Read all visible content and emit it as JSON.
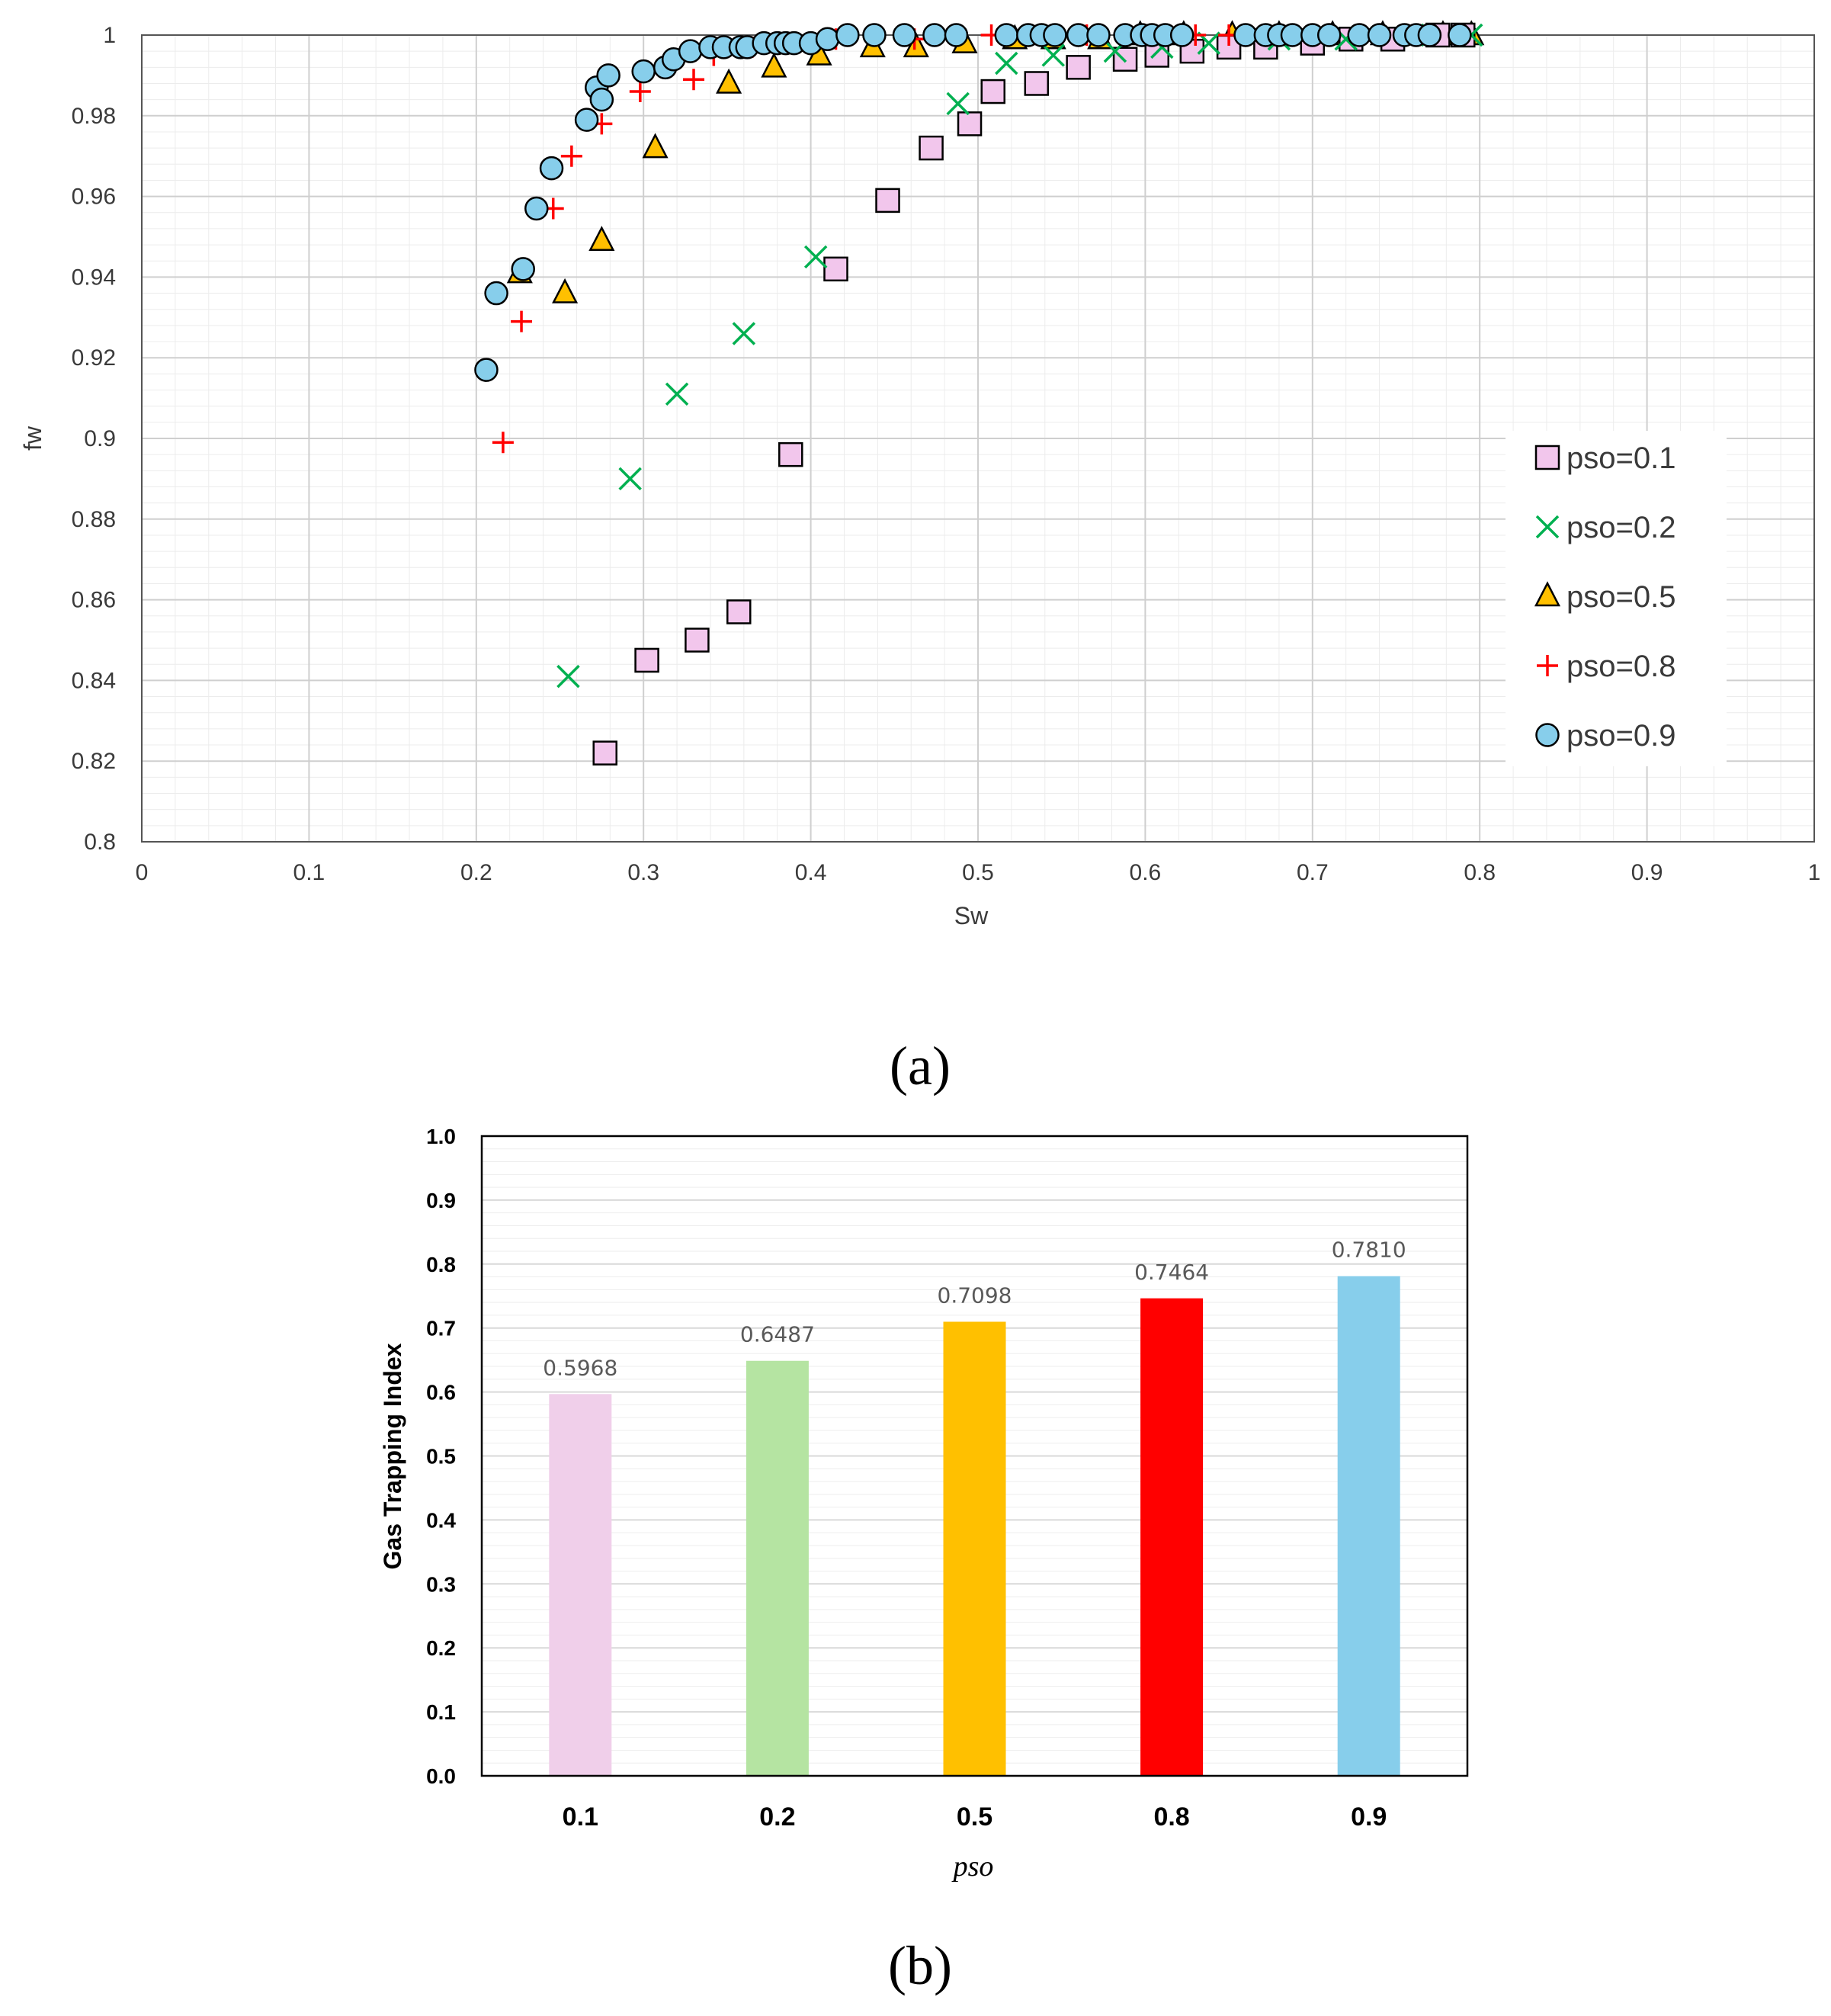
{
  "chart_data": [
    {
      "type": "scatter",
      "panel_label": "(a)",
      "xlabel": "Sw",
      "ylabel": "fw",
      "xlim": [
        0,
        1
      ],
      "ylim": [
        0.8,
        1
      ],
      "x_ticks": [
        "0",
        "0.1",
        "0.2",
        "0.3",
        "0.4",
        "0.5",
        "0.6",
        "0.7",
        "0.8",
        "0.9",
        "1"
      ],
      "y_ticks": [
        "0.8",
        "0.82",
        "0.84",
        "0.86",
        "0.88",
        "0.9",
        "0.92",
        "0.94",
        "0.96",
        "0.98",
        "1"
      ],
      "grid": true,
      "legend_position": "right",
      "series": [
        {
          "name": "pso=0.1",
          "marker": "square",
          "color": "#F2C6EC",
          "x": [
            0.277,
            0.302,
            0.332,
            0.357,
            0.388,
            0.415,
            0.446,
            0.472,
            0.495,
            0.509,
            0.535,
            0.56,
            0.588,
            0.607,
            0.628,
            0.65,
            0.672,
            0.7,
            0.723,
            0.748,
            0.775,
            0.79
          ],
          "y": [
            0.822,
            0.845,
            0.85,
            0.857,
            0.896,
            0.942,
            0.959,
            0.972,
            0.978,
            0.986,
            0.988,
            0.992,
            0.994,
            0.995,
            0.996,
            0.997,
            0.997,
            0.998,
            0.999,
            0.999,
            1.0,
            1.0
          ]
        },
        {
          "name": "pso=0.2",
          "marker": "x",
          "color": "#00B050",
          "x": [
            0.255,
            0.292,
            0.32,
            0.36,
            0.403,
            0.488,
            0.517,
            0.545,
            0.582,
            0.61,
            0.638,
            0.68,
            0.72,
            0.76,
            0.795
          ],
          "y": [
            0.841,
            0.89,
            0.911,
            0.926,
            0.945,
            0.983,
            0.993,
            0.995,
            0.996,
            0.997,
            0.998,
            0.999,
            0.999,
            1.0,
            1.0
          ]
        },
        {
          "name": "pso=0.5",
          "marker": "triangle",
          "color": "#FFC000",
          "x": [
            0.226,
            0.253,
            0.275,
            0.307,
            0.351,
            0.378,
            0.405,
            0.437,
            0.463,
            0.492,
            0.522,
            0.545,
            0.573,
            0.597,
            0.623,
            0.652,
            0.68,
            0.712,
            0.742,
            0.778,
            0.795
          ],
          "y": [
            0.941,
            0.936,
            0.949,
            0.972,
            0.988,
            0.992,
            0.995,
            0.997,
            0.997,
            0.998,
            0.999,
            0.999,
            0.999,
            1.0,
            1.0,
            1.0,
            1.0,
            1.0,
            1.0,
            1.0,
            1.0
          ]
        },
        {
          "name": "pso=0.8",
          "marker": "plus",
          "color": "#FF0000",
          "x": [
            0.216,
            0.227,
            0.246,
            0.257,
            0.275,
            0.298,
            0.33,
            0.342,
            0.365,
            0.388,
            0.415,
            0.462,
            0.508,
            0.565,
            0.63,
            0.65
          ],
          "y": [
            0.899,
            0.929,
            0.957,
            0.97,
            0.978,
            0.986,
            0.989,
            0.995,
            0.997,
            0.998,
            0.999,
            0.999,
            1.0,
            1.0,
            1.0,
            1.0
          ]
        },
        {
          "name": "pso=0.9",
          "marker": "circle",
          "color": "#87CEEB",
          "x": [
            0.206,
            0.212,
            0.228,
            0.236,
            0.245,
            0.266,
            0.272,
            0.275,
            0.279,
            0.3,
            0.313,
            0.318,
            0.328,
            0.34,
            0.348,
            0.358,
            0.362,
            0.372,
            0.38,
            0.385,
            0.39,
            0.4,
            0.41,
            0.422,
            0.438,
            0.456,
            0.474,
            0.487,
            0.517,
            0.53,
            0.538,
            0.546,
            0.56,
            0.572,
            0.588,
            0.598,
            0.604,
            0.612,
            0.622,
            0.66,
            0.672,
            0.68,
            0.688,
            0.7,
            0.71,
            0.728,
            0.74,
            0.755,
            0.762,
            0.77,
            0.788
          ],
          "y": [
            0.917,
            0.936,
            0.942,
            0.957,
            0.967,
            0.979,
            0.987,
            0.984,
            0.99,
            0.991,
            0.992,
            0.994,
            0.996,
            0.997,
            0.997,
            0.997,
            0.997,
            0.998,
            0.998,
            0.998,
            0.998,
            0.998,
            0.999,
            1.0,
            1.0,
            1.0,
            1.0,
            1.0,
            1.0,
            1.0,
            1.0,
            1.0,
            1.0,
            1.0,
            1.0,
            1.0,
            1.0,
            1.0,
            1.0,
            1.0,
            1.0,
            1.0,
            1.0,
            1.0,
            1.0,
            1.0,
            1.0,
            1.0,
            1.0,
            1.0,
            1.0
          ]
        }
      ]
    },
    {
      "type": "bar",
      "panel_label": "(b)",
      "xlabel": "pso",
      "ylabel": "Gas Trapping Index",
      "ylim": [
        0,
        1
      ],
      "y_ticks": [
        "0.0",
        "0.1",
        "0.2",
        "0.3",
        "0.4",
        "0.5",
        "0.6",
        "0.7",
        "0.8",
        "0.9",
        "1.0"
      ],
      "grid": true,
      "categories": [
        "0.1",
        "0.2",
        "0.5",
        "0.8",
        "0.9"
      ],
      "values": [
        0.5968,
        0.6487,
        0.7098,
        0.7464,
        0.781
      ],
      "value_labels": [
        "0.5968",
        "0.6487",
        "0.7098",
        "0.7464",
        "0.7810"
      ],
      "colors": [
        "#F0CFEA",
        "#B5E4A2",
        "#FFC000",
        "#FF0000",
        "#87CEEB"
      ]
    }
  ]
}
